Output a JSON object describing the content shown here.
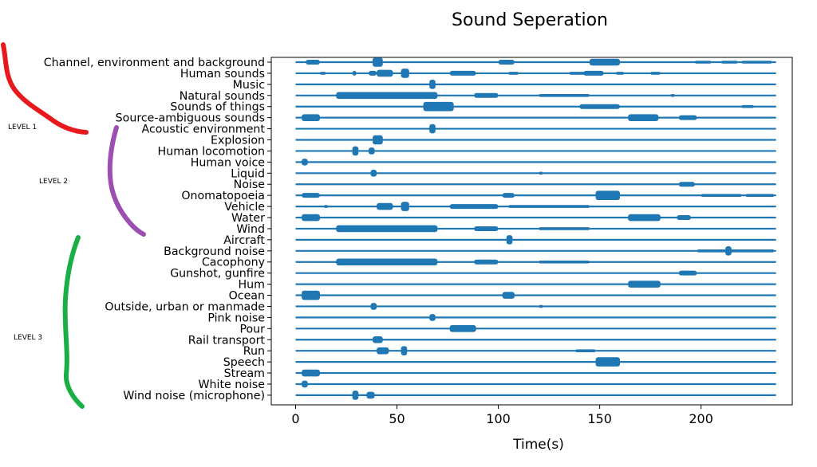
{
  "chart_data": {
    "type": "event_timeline",
    "title": "Sound Seperation",
    "xlabel": "Time(s)",
    "ylabel": "",
    "xlim": [
      -12,
      245
    ],
    "xticks": [
      0,
      50,
      100,
      150,
      200
    ],
    "track_end": 237,
    "series_color": "#1f77b4",
    "grid": false,
    "legend": "none",
    "annotations": [
      {
        "label": "LEVEL 1",
        "color": "#e8191c"
      },
      {
        "label": "LEVEL 2",
        "color": "#9b4fb0"
      },
      {
        "label": "LEVEL 3",
        "color": "#1aaf45"
      }
    ],
    "categories": [
      "Channel, environment and background",
      "Human sounds",
      "Music",
      "Natural sounds",
      "Sounds of things",
      "Source-ambiguous sounds",
      "Acoustic environment",
      "Explosion",
      "Human locomotion",
      "Human voice",
      "Liquid",
      "Noise",
      "Onomatopoeia",
      "Vehicle",
      "Water",
      "Wind",
      "Aircraft",
      "Background noise",
      "Cacophony",
      "Gunshot, gunfire",
      "Hum",
      "Ocean",
      "Outside, urban or manmade",
      "Pink noise",
      "Pour",
      "Rail transport",
      "Run",
      "Speech",
      "Stream",
      "White noise",
      "Wind noise (microphone)"
    ],
    "events": [
      [
        [
          5,
          12,
          2
        ],
        [
          38,
          43,
          4
        ],
        [
          100,
          108,
          2
        ],
        [
          145,
          160,
          3
        ],
        [
          197,
          205,
          1
        ],
        [
          210,
          218,
          1
        ],
        [
          220,
          235,
          1
        ]
      ],
      [
        [
          12,
          15,
          1
        ],
        [
          28,
          30,
          2
        ],
        [
          36,
          40,
          2
        ],
        [
          40,
          48,
          3
        ],
        [
          52,
          56,
          4
        ],
        [
          76,
          89,
          2
        ],
        [
          105,
          110,
          1
        ],
        [
          135,
          145,
          1
        ],
        [
          142,
          152,
          2
        ],
        [
          158,
          162,
          1
        ],
        [
          175,
          180,
          1
        ]
      ],
      [
        [
          66,
          69,
          4
        ]
      ],
      [
        [
          20,
          70,
          3
        ],
        [
          88,
          100,
          2
        ],
        [
          120,
          145,
          1
        ],
        [
          185,
          187,
          1
        ]
      ],
      [
        [
          63,
          78,
          4
        ],
        [
          140,
          160,
          2
        ],
        [
          220,
          226,
          1
        ]
      ],
      [
        [
          3,
          12,
          3
        ],
        [
          164,
          179,
          3
        ],
        [
          189,
          198,
          2
        ]
      ],
      [
        [
          66,
          69,
          4
        ]
      ],
      [
        [
          38,
          43,
          4
        ]
      ],
      [
        [
          28,
          31,
          4
        ],
        [
          36,
          39,
          3
        ]
      ],
      [
        [
          3,
          6,
          3
        ]
      ],
      [
        [
          37,
          40,
          3
        ],
        [
          120,
          122,
          1
        ]
      ],
      [
        [
          189,
          197,
          2
        ]
      ],
      [
        [
          3,
          12,
          2
        ],
        [
          102,
          108,
          2
        ],
        [
          148,
          160,
          4
        ],
        [
          200,
          220,
          1
        ],
        [
          222,
          236,
          1
        ]
      ],
      [
        [
          14,
          16,
          1
        ],
        [
          40,
          48,
          3
        ],
        [
          52,
          56,
          4
        ],
        [
          76,
          100,
          2
        ],
        [
          105,
          145,
          1
        ]
      ],
      [
        [
          3,
          12,
          3
        ],
        [
          164,
          180,
          3
        ],
        [
          188,
          195,
          2
        ]
      ],
      [
        [
          20,
          70,
          3
        ],
        [
          88,
          100,
          2
        ],
        [
          120,
          145,
          1
        ]
      ],
      [
        [
          104,
          107,
          4
        ]
      ],
      [
        [
          198,
          236,
          1
        ],
        [
          212,
          215,
          4
        ]
      ],
      [
        [
          20,
          70,
          3
        ],
        [
          88,
          100,
          2
        ],
        [
          120,
          145,
          1
        ]
      ],
      [
        [
          189,
          198,
          2
        ]
      ],
      [
        [
          164,
          180,
          3
        ]
      ],
      [
        [
          3,
          12,
          4
        ],
        [
          102,
          108,
          3
        ]
      ],
      [
        [
          37,
          40,
          3
        ],
        [
          120,
          122,
          1
        ]
      ],
      [
        [
          66,
          69,
          3
        ]
      ],
      [
        [
          76,
          89,
          3
        ]
      ],
      [
        [
          38,
          43,
          3
        ]
      ],
      [
        [
          40,
          46,
          3
        ],
        [
          52,
          55,
          4
        ],
        [
          138,
          148,
          1
        ]
      ],
      [
        [
          148,
          160,
          4
        ]
      ],
      [
        [
          3,
          12,
          3
        ]
      ],
      [
        [
          3,
          6,
          3
        ]
      ],
      [
        [
          28,
          31,
          4
        ],
        [
          35,
          39,
          3
        ]
      ]
    ]
  }
}
